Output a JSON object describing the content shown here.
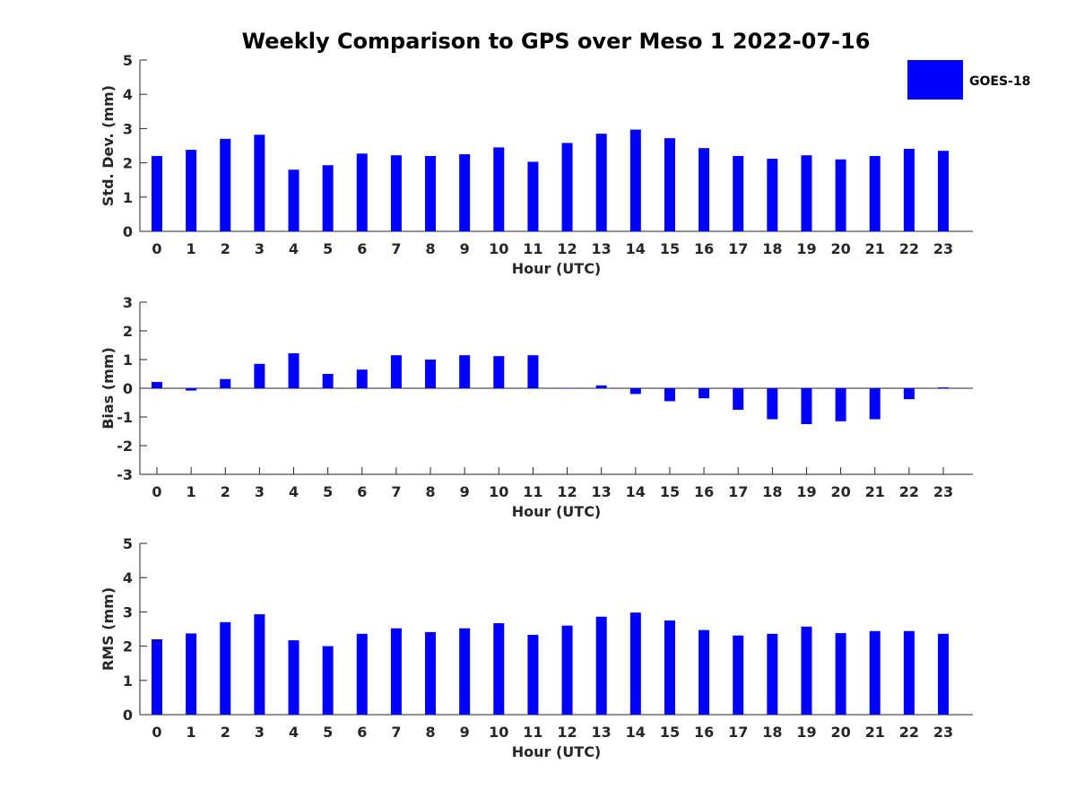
{
  "chart_data": {
    "type": "bar",
    "title": "Weekly Comparison to GPS over Meso 1 2022-07-16",
    "legend": {
      "label": "GOES-18",
      "color": "#0000ff",
      "placement": "top-right"
    },
    "categories": [
      "0",
      "1",
      "2",
      "3",
      "4",
      "5",
      "6",
      "7",
      "8",
      "9",
      "10",
      "11",
      "12",
      "13",
      "14",
      "15",
      "16",
      "17",
      "18",
      "19",
      "20",
      "21",
      "22",
      "23"
    ],
    "panels": [
      {
        "name": "std-dev",
        "ylabel": "Std. Dev. (mm)",
        "xlabel": "Hour (UTC)",
        "ylim": [
          0,
          5
        ],
        "yticks": [
          "0",
          "1",
          "2",
          "3",
          "4",
          "5"
        ],
        "series": [
          {
            "name": "GOES-18",
            "values": [
              2.2,
              2.38,
              2.7,
              2.82,
              1.8,
              1.93,
              2.27,
              2.22,
              2.2,
              2.25,
              2.45,
              2.03,
              2.58,
              2.85,
              2.97,
              2.72,
              2.43,
              2.2,
              2.12,
              2.22,
              2.1,
              2.2,
              2.41,
              2.35
            ]
          }
        ]
      },
      {
        "name": "bias",
        "ylabel": "Bias (mm)",
        "xlabel": "Hour (UTC)",
        "ylim": [
          -3,
          3
        ],
        "yticks": [
          "-3",
          "-2",
          "-1",
          "0",
          "1",
          "2",
          "3"
        ],
        "series": [
          {
            "name": "GOES-18",
            "values": [
              0.22,
              -0.08,
              0.32,
              0.85,
              1.22,
              0.5,
              0.65,
              1.15,
              1.0,
              1.15,
              1.12,
              1.15,
              0.0,
              0.1,
              -0.2,
              -0.45,
              -0.35,
              -0.75,
              -1.08,
              -1.25,
              -1.15,
              -1.08,
              -0.38,
              0.03
            ]
          }
        ]
      },
      {
        "name": "rms",
        "ylabel": "RMS (mm)",
        "xlabel": "Hour (UTC)",
        "ylim": [
          0,
          5
        ],
        "yticks": [
          "0",
          "1",
          "2",
          "3",
          "4",
          "5"
        ],
        "series": [
          {
            "name": "GOES-18",
            "values": [
              2.2,
              2.37,
              2.7,
              2.93,
              2.17,
              2.0,
              2.36,
              2.52,
              2.41,
              2.52,
              2.67,
              2.33,
              2.6,
              2.86,
              2.98,
              2.75,
              2.47,
              2.31,
              2.36,
              2.57,
              2.38,
              2.44,
              2.44,
              2.36
            ]
          }
        ]
      }
    ]
  }
}
